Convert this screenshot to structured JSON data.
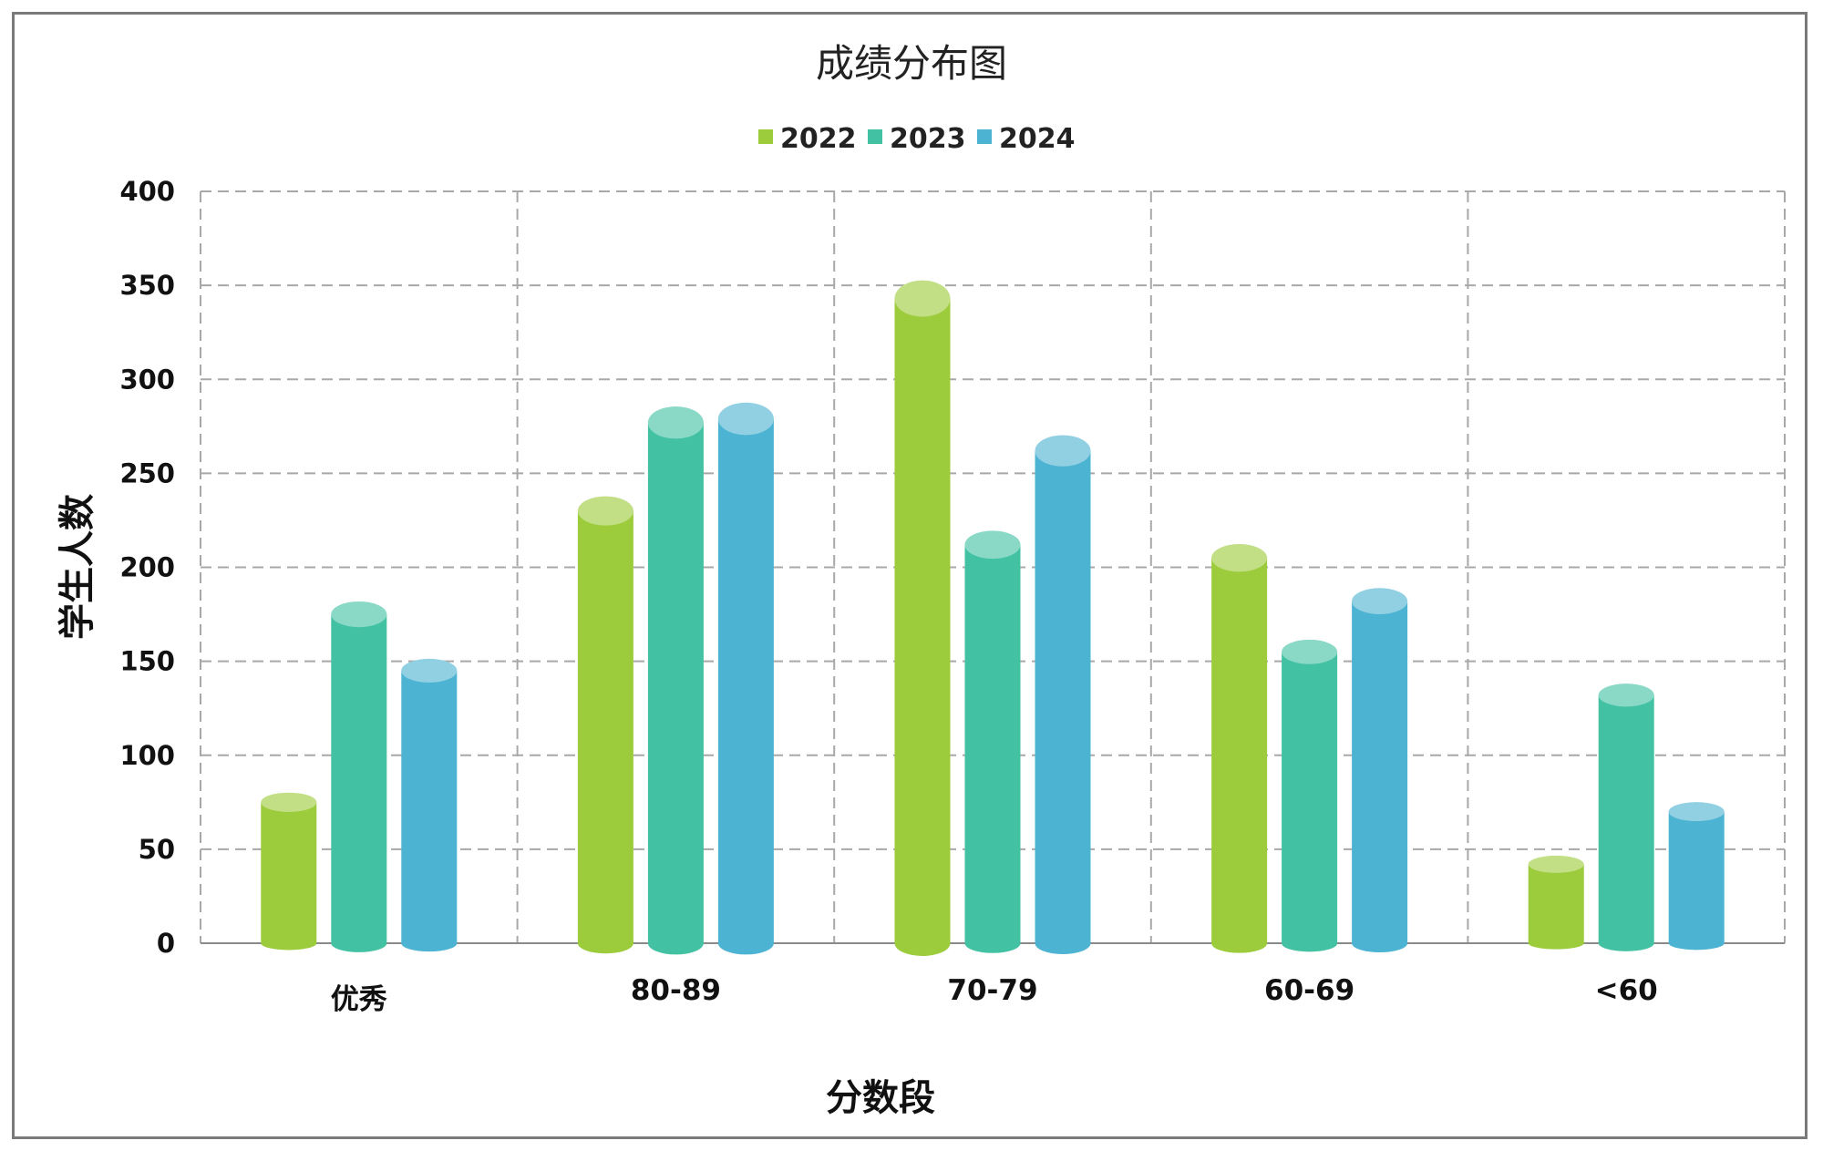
{
  "chart_data": {
    "type": "bar",
    "title": "成绩分布图",
    "xlabel": "分数段",
    "ylabel": "学生人数",
    "categories": [
      "优秀",
      "80-89",
      "70-79",
      "60-69",
      "<60"
    ],
    "series": [
      {
        "name": "2022",
        "color": "#9ccb3b",
        "values": [
          75,
          230,
          343,
          205,
          42
        ]
      },
      {
        "name": "2023",
        "color": "#42c2a3",
        "values": [
          175,
          277,
          212,
          155,
          132
        ]
      },
      {
        "name": "2024",
        "color": "#4db3d2",
        "values": [
          145,
          279,
          262,
          182,
          70
        ]
      }
    ],
    "ylim": [
      0,
      400
    ],
    "yticks": [
      0,
      50,
      100,
      150,
      200,
      250,
      300,
      350,
      400
    ],
    "grid": true,
    "legend_position": "top-center"
  }
}
